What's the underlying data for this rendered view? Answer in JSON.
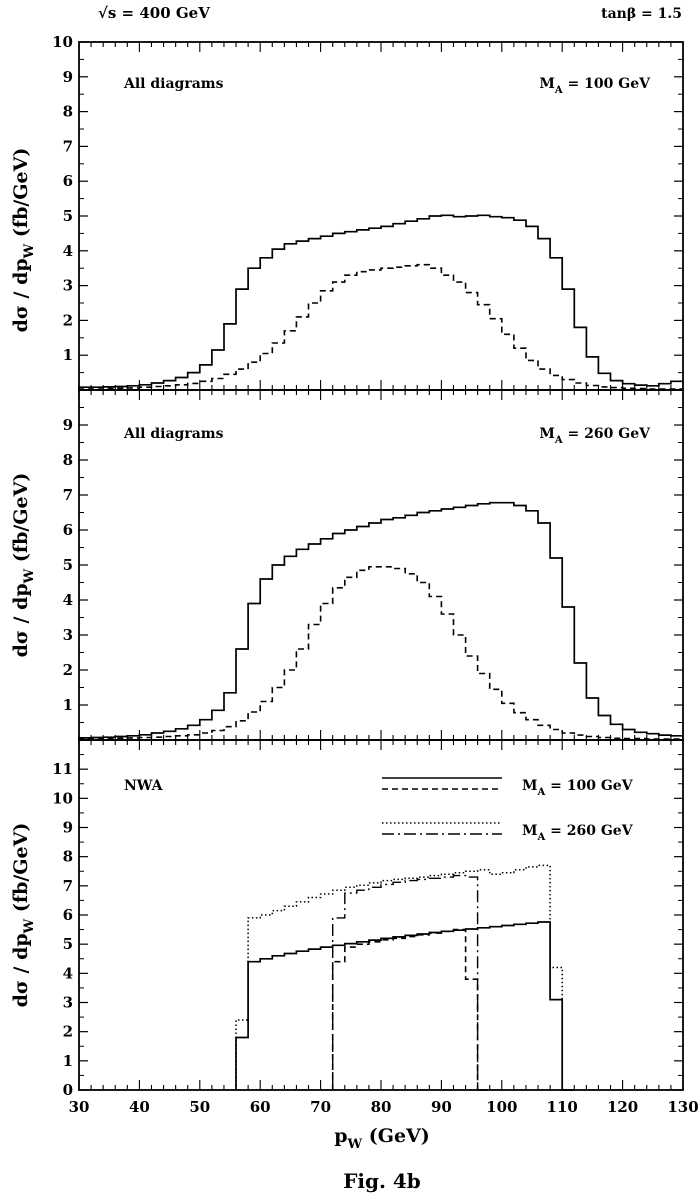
{
  "header": {
    "sqrt_s": "√s =  400 GeV",
    "tan_beta": "tanβ = 1.5"
  },
  "caption": "Fig. 4b",
  "xaxis": {
    "label": "p_W (GeV)",
    "label_main": "p",
    "label_sub": "W",
    "label_unit": " (GeV)",
    "range": [
      30,
      130
    ],
    "ticks": [
      "30",
      "40",
      "50",
      "60",
      "70",
      "80",
      "90",
      "100",
      "110",
      "120",
      "130"
    ]
  },
  "ylabel": {
    "main": "dσ / dp",
    "sub": "W",
    "unit": " (fb/GeV)"
  },
  "chart_data": [
    {
      "type": "line",
      "panel": "top",
      "annotation_left": "All diagrams",
      "annotation_right": "M_A = 100 GeV",
      "ann_right_main": "M",
      "ann_right_sub": "A",
      "ann_right_rest": " = 100 GeV",
      "ylim": [
        0,
        10
      ],
      "yticks": [
        "1",
        "2",
        "3",
        "4",
        "5",
        "6",
        "7",
        "8",
        "9",
        "10"
      ],
      "x": [
        30,
        32,
        34,
        36,
        38,
        40,
        42,
        44,
        46,
        48,
        50,
        52,
        54,
        56,
        58,
        60,
        62,
        64,
        66,
        68,
        70,
        72,
        74,
        76,
        78,
        80,
        82,
        84,
        86,
        88,
        90,
        92,
        94,
        96,
        98,
        100,
        102,
        104,
        106,
        108,
        110,
        112,
        114,
        116,
        118,
        120,
        122,
        124,
        126,
        128
      ],
      "series": [
        {
          "style": "solid",
          "values": [
            0.08,
            0.08,
            0.09,
            0.1,
            0.12,
            0.15,
            0.2,
            0.27,
            0.36,
            0.5,
            0.72,
            1.15,
            1.9,
            2.9,
            3.5,
            3.8,
            4.05,
            4.2,
            4.28,
            4.35,
            4.42,
            4.5,
            4.55,
            4.6,
            4.65,
            4.7,
            4.78,
            4.85,
            4.92,
            5.0,
            5.02,
            4.98,
            5.0,
            5.02,
            4.98,
            4.95,
            4.88,
            4.7,
            4.35,
            3.8,
            2.9,
            1.8,
            0.95,
            0.48,
            0.27,
            0.18,
            0.14,
            0.12,
            0.18,
            0.25
          ]
        },
        {
          "style": "dashed",
          "values": [
            0.03,
            0.03,
            0.04,
            0.05,
            0.06,
            0.08,
            0.1,
            0.12,
            0.15,
            0.19,
            0.25,
            0.33,
            0.45,
            0.6,
            0.8,
            1.05,
            1.35,
            1.7,
            2.1,
            2.5,
            2.85,
            3.1,
            3.3,
            3.4,
            3.45,
            3.5,
            3.53,
            3.57,
            3.6,
            3.5,
            3.3,
            3.1,
            2.8,
            2.45,
            2.05,
            1.6,
            1.2,
            0.85,
            0.6,
            0.42,
            0.3,
            0.2,
            0.13,
            0.09,
            0.07,
            0.05,
            0.04,
            0.03,
            0.03,
            0.03
          ]
        }
      ]
    },
    {
      "type": "line",
      "panel": "middle",
      "annotation_left": "All diagrams",
      "annotation_right": "M_A = 260 GeV",
      "ann_right_main": "M",
      "ann_right_sub": "A",
      "ann_right_rest": " = 260 GeV",
      "ylim": [
        0,
        10
      ],
      "yticks": [
        "1",
        "2",
        "3",
        "4",
        "5",
        "6",
        "7",
        "8",
        "9"
      ],
      "x": [
        30,
        32,
        34,
        36,
        38,
        40,
        42,
        44,
        46,
        48,
        50,
        52,
        54,
        56,
        58,
        60,
        62,
        64,
        66,
        68,
        70,
        72,
        74,
        76,
        78,
        80,
        82,
        84,
        86,
        88,
        90,
        92,
        94,
        96,
        98,
        100,
        102,
        104,
        106,
        108,
        110,
        112,
        114,
        116,
        118,
        120,
        122,
        124,
        126,
        128
      ],
      "series": [
        {
          "style": "solid",
          "values": [
            0.06,
            0.07,
            0.08,
            0.1,
            0.12,
            0.15,
            0.2,
            0.25,
            0.32,
            0.42,
            0.58,
            0.85,
            1.35,
            2.6,
            3.9,
            4.6,
            5.0,
            5.25,
            5.45,
            5.6,
            5.75,
            5.9,
            6.0,
            6.1,
            6.2,
            6.3,
            6.35,
            6.42,
            6.5,
            6.55,
            6.6,
            6.65,
            6.7,
            6.75,
            6.78,
            6.78,
            6.7,
            6.55,
            6.2,
            5.2,
            3.8,
            2.2,
            1.2,
            0.7,
            0.45,
            0.3,
            0.22,
            0.18,
            0.14,
            0.12
          ]
        },
        {
          "style": "dashed",
          "values": [
            0.03,
            0.03,
            0.04,
            0.05,
            0.06,
            0.07,
            0.08,
            0.1,
            0.12,
            0.15,
            0.2,
            0.27,
            0.38,
            0.55,
            0.8,
            1.1,
            1.5,
            2.0,
            2.6,
            3.3,
            3.9,
            4.35,
            4.65,
            4.85,
            4.95,
            4.95,
            4.9,
            4.75,
            4.5,
            4.1,
            3.6,
            3.0,
            2.4,
            1.9,
            1.45,
            1.05,
            0.78,
            0.58,
            0.42,
            0.3,
            0.2,
            0.14,
            0.1,
            0.07,
            0.05,
            0.04,
            0.04,
            0.03,
            0.03,
            0.03
          ]
        }
      ]
    },
    {
      "type": "line",
      "panel": "bottom",
      "annotation_left": "NWA",
      "legend": [
        {
          "label": "M_A = 100 GeV",
          "main": "M",
          "sub": "A",
          "rest": " = 100 GeV",
          "styles": [
            "solid",
            "dashed"
          ]
        },
        {
          "label": "M_A = 260 GeV",
          "main": "M",
          "sub": "A",
          "rest": " = 260 GeV",
          "styles": [
            "dotted",
            "dashdot"
          ]
        }
      ],
      "ylim": [
        0,
        12
      ],
      "yticks": [
        "0",
        "1",
        "2",
        "3",
        "4",
        "5",
        "6",
        "7",
        "8",
        "9",
        "10",
        "11"
      ],
      "series": [
        {
          "style": "solid",
          "x": [
            56,
            58,
            60,
            62,
            64,
            66,
            68,
            70,
            72,
            74,
            76,
            78,
            80,
            82,
            84,
            86,
            88,
            90,
            92,
            94,
            96,
            98,
            100,
            102,
            104,
            106,
            108,
            110
          ],
          "values": [
            1.8,
            4.4,
            4.5,
            4.6,
            4.68,
            4.76,
            4.83,
            4.9,
            4.96,
            5.02,
            5.08,
            5.14,
            5.2,
            5.25,
            5.3,
            5.35,
            5.4,
            5.44,
            5.48,
            5.52,
            5.56,
            5.6,
            5.64,
            5.68,
            5.72,
            5.76,
            3.1,
            0
          ]
        },
        {
          "style": "dashed",
          "x": [
            72,
            74,
            76,
            78,
            80,
            82,
            84,
            86,
            88,
            90,
            92,
            94,
            96
          ],
          "values": [
            4.4,
            4.9,
            5.0,
            5.08,
            5.15,
            5.2,
            5.26,
            5.32,
            5.38,
            5.44,
            5.5,
            3.8,
            0
          ]
        },
        {
          "style": "dotted",
          "x": [
            56,
            58,
            60,
            62,
            64,
            66,
            68,
            70,
            72,
            74,
            76,
            78,
            80,
            82,
            84,
            86,
            88,
            90,
            92,
            94,
            96,
            98,
            100,
            102,
            104,
            106,
            108,
            110
          ],
          "values": [
            2.4,
            5.9,
            6.0,
            6.15,
            6.3,
            6.45,
            6.6,
            6.72,
            6.85,
            6.95,
            7.02,
            7.1,
            7.18,
            7.22,
            7.26,
            7.3,
            7.35,
            7.4,
            7.45,
            7.5,
            7.55,
            7.4,
            7.45,
            7.55,
            7.65,
            7.7,
            4.2,
            0
          ]
        },
        {
          "style": "dashdot",
          "x": [
            72,
            74,
            76,
            78,
            80,
            82,
            84,
            86,
            88,
            90,
            92,
            94,
            96
          ],
          "values": [
            5.9,
            6.75,
            6.85,
            6.95,
            7.05,
            7.12,
            7.18,
            7.22,
            7.26,
            7.3,
            7.35,
            7.3,
            0
          ]
        }
      ]
    }
  ]
}
